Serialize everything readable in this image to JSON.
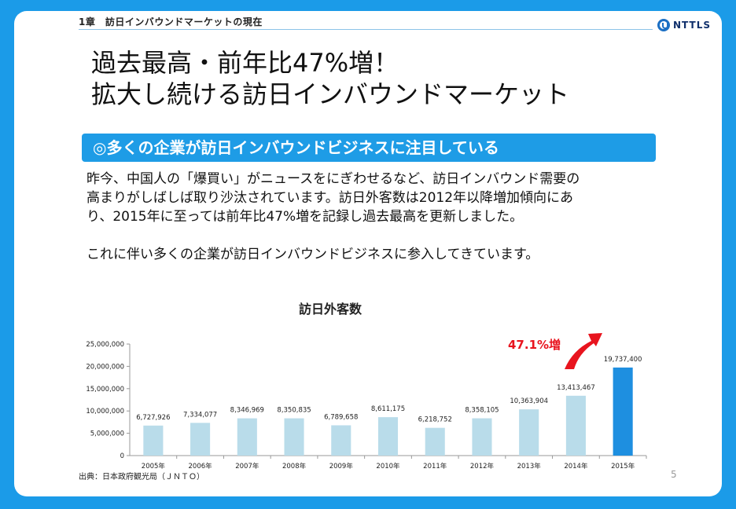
{
  "header": {
    "chapter": "1章　訪日インバウンドマーケットの現在",
    "logo": "NTTLS"
  },
  "title": {
    "line1": "過去最高・前年比47%増！",
    "line2": "拡大し続ける訪日インバウンドマーケット"
  },
  "band": "◎多くの企業が訪日インバウンドビジネスに注目している",
  "body": {
    "paragraph1_line1": "昨今、中国人の「爆買い」がニュースをにぎわせるなど、訪日インバウンド需要の",
    "paragraph1_line2": "高まりがしばしば取り沙汰されています。訪日外客数は2012年以降増加傾向にあ",
    "paragraph1_line3": "り、2015年に至っては前年比47%増を記録し過去最高を更新しました。",
    "paragraph2": "これに伴い多くの企業が訪日インバウンドビジネスに参入してきています。"
  },
  "chart_data": {
    "type": "bar",
    "title": "訪日外客数",
    "categories": [
      "2005年",
      "2006年",
      "2007年",
      "2008年",
      "2009年",
      "2010年",
      "2011年",
      "2012年",
      "2013年",
      "2014年",
      "2015年"
    ],
    "values": [
      6727926,
      7334077,
      8346969,
      8350835,
      6789658,
      8611175,
      6218752,
      8358105,
      10363904,
      13413467,
      19737400
    ],
    "value_labels": [
      "6,727,926",
      "7,334,077",
      "8,346,969",
      "8,350,835",
      "6,789,658",
      "8,611,175",
      "6,218,752",
      "8,358,105",
      "10,363,904",
      "13,413,467",
      "19,737,400"
    ],
    "ylim": [
      0,
      25000000
    ],
    "yticks": [
      0,
      5000000,
      10000000,
      15000000,
      20000000,
      25000000
    ],
    "ytick_labels": [
      "0",
      "5,000,000",
      "10,000,000",
      "15,000,000",
      "20,000,000",
      "25,000,000"
    ],
    "gridlines": false,
    "legend": "none",
    "bar_color": "#b9dcea",
    "highlight_color": "#1e8fe0",
    "highlight_index": 10,
    "annotation": "47.1%増",
    "annotation_color": "#e8141e"
  },
  "source": "出典：日本政府観光局（ＪＮＴＯ）",
  "page_number": "5"
}
